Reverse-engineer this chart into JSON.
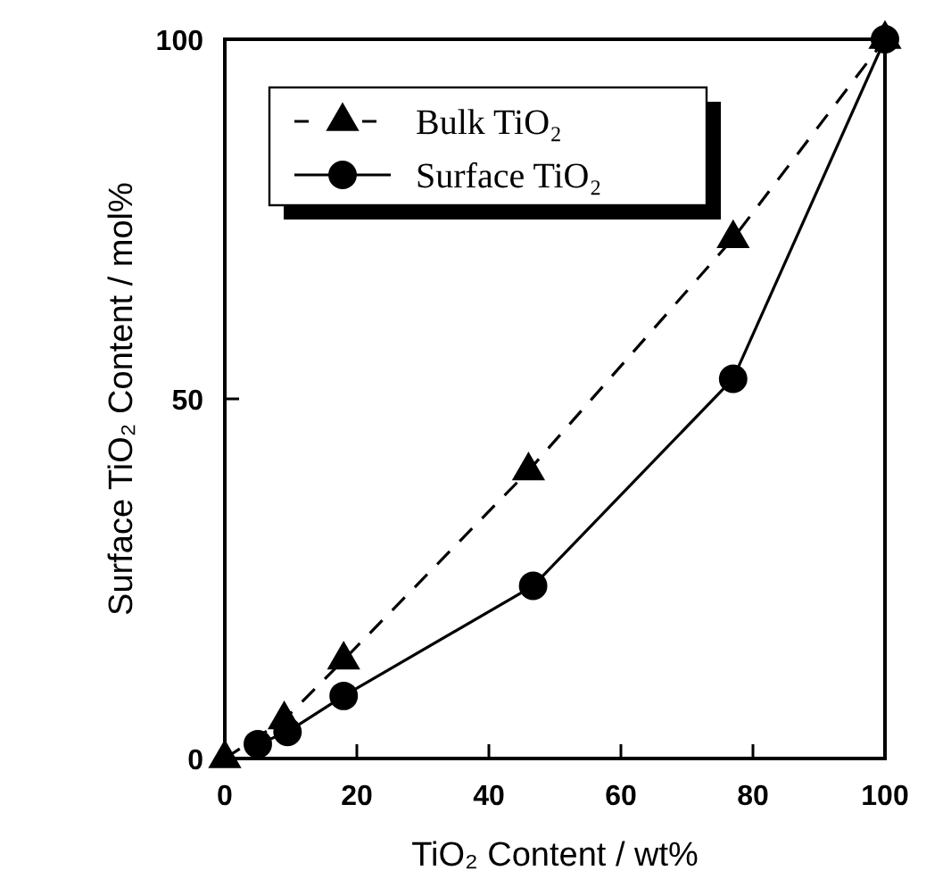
{
  "chart_data": {
    "type": "line",
    "xlabel": "TiO₂ Content / wt%",
    "ylabel": "Surface TiO₂ Content / mol%",
    "xlim": [
      0,
      100
    ],
    "ylim": [
      0,
      100
    ],
    "xticks": [
      0,
      20,
      40,
      60,
      80,
      100
    ],
    "yticks": [
      0,
      50,
      100
    ],
    "grid": false,
    "legend": "top left",
    "series": [
      {
        "name": "Bulk TiO₂",
        "color": "#000000",
        "marker": "triangle",
        "line_style": "dashed",
        "x": [
          0,
          9,
          18,
          46,
          77,
          100
        ],
        "values": [
          0,
          5.4,
          13.7,
          40,
          72.3,
          100
        ]
      },
      {
        "name": "Surface TiO₂",
        "color": "#000000",
        "marker": "circle",
        "line_style": "solid",
        "x": [
          5,
          9.5,
          18,
          46.7,
          77,
          100
        ],
        "values": [
          2,
          3.7,
          8.7,
          24,
          52.8,
          100
        ]
      }
    ]
  }
}
